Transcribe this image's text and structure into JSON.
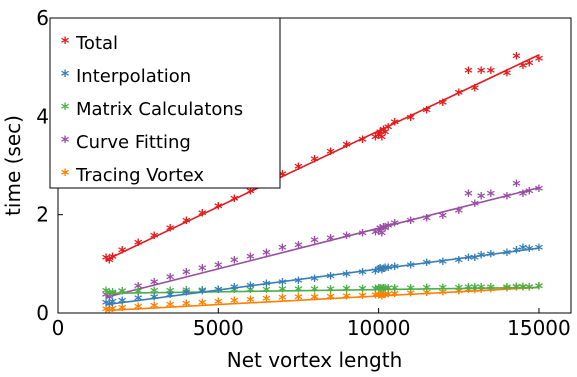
{
  "chart_data": {
    "type": "scatter",
    "title": "",
    "xlabel": "Net vortex length",
    "ylabel": "time (sec)",
    "xlim": [
      0,
      16000
    ],
    "ylim": [
      0,
      6
    ],
    "xticks": [
      0,
      5000,
      10000,
      15000
    ],
    "yticks": [
      0,
      2,
      4,
      6
    ],
    "xtick_labels": [
      "0",
      "5000",
      "10000",
      "15000"
    ],
    "ytick_labels": [
      "0",
      "2",
      "4",
      "6"
    ],
    "grid": false,
    "legend_position": "top-left",
    "marker": "*",
    "x": [
      1500,
      1600,
      1700,
      2000,
      2500,
      3000,
      3500,
      4000,
      4500,
      5000,
      5500,
      6000,
      6500,
      7000,
      7500,
      8000,
      8500,
      9000,
      9500,
      9900,
      10000,
      10050,
      10100,
      10150,
      10200,
      10300,
      10500,
      11000,
      11500,
      12000,
      12500,
      12800,
      13000,
      13200,
      13500,
      14000,
      14300,
      14500,
      14700,
      15000
    ],
    "series": [
      {
        "name": "Total",
        "color": "#e41a1c",
        "values": [
          1.1,
          1.05,
          1.12,
          1.25,
          1.4,
          1.55,
          1.7,
          1.85,
          2.0,
          2.15,
          2.3,
          2.45,
          2.6,
          2.8,
          2.95,
          3.1,
          3.25,
          3.4,
          3.5,
          3.55,
          3.6,
          3.65,
          3.55,
          3.7,
          3.65,
          3.75,
          3.85,
          3.95,
          4.1,
          4.25,
          4.45,
          4.9,
          4.55,
          4.9,
          4.9,
          4.85,
          5.2,
          5.0,
          5.05,
          5.15
        ],
        "fit": [
          1.08,
          5.25
        ]
      },
      {
        "name": "Interpolation",
        "color": "#377eb8",
        "values": [
          0.18,
          0.15,
          0.2,
          0.22,
          0.27,
          0.3,
          0.35,
          0.4,
          0.42,
          0.45,
          0.5,
          0.53,
          0.57,
          0.6,
          0.63,
          0.67,
          0.72,
          0.76,
          0.8,
          0.82,
          0.86,
          0.88,
          0.84,
          0.87,
          0.9,
          0.9,
          0.92,
          0.95,
          1.0,
          1.02,
          1.05,
          1.1,
          1.1,
          1.15,
          1.17,
          1.2,
          1.25,
          1.3,
          1.28,
          1.3
        ],
        "fit": [
          0.17,
          1.32
        ]
      },
      {
        "name": "Matrix Calculatons",
        "color": "#4daf4a",
        "values": [
          0.43,
          0.38,
          0.4,
          0.42,
          0.42,
          0.43,
          0.43,
          0.44,
          0.44,
          0.45,
          0.45,
          0.45,
          0.45,
          0.46,
          0.46,
          0.46,
          0.46,
          0.47,
          0.47,
          0.47,
          0.48,
          0.48,
          0.47,
          0.48,
          0.48,
          0.48,
          0.48,
          0.48,
          0.49,
          0.49,
          0.49,
          0.5,
          0.5,
          0.5,
          0.5,
          0.5,
          0.51,
          0.51,
          0.5,
          0.52
        ],
        "fit": [
          0.4,
          0.52
        ]
      },
      {
        "name": "Curve Fitting",
        "color": "#984ea3",
        "values": [
          0.35,
          0.3,
          0.37,
          0.42,
          0.52,
          0.6,
          0.7,
          0.8,
          0.88,
          0.95,
          1.05,
          1.12,
          1.2,
          1.3,
          1.35,
          1.45,
          1.5,
          1.55,
          1.6,
          1.62,
          1.65,
          1.7,
          1.6,
          1.72,
          1.7,
          1.75,
          1.8,
          1.85,
          1.9,
          1.95,
          2.05,
          2.4,
          2.2,
          2.35,
          2.4,
          2.35,
          2.6,
          2.4,
          2.45,
          2.5
        ],
        "fit": [
          0.32,
          2.55
        ]
      },
      {
        "name": "Tracing Vortex",
        "color": "#ff7f00",
        "values": [
          0.05,
          0.03,
          0.06,
          0.08,
          0.1,
          0.12,
          0.14,
          0.16,
          0.18,
          0.2,
          0.22,
          0.24,
          0.26,
          0.28,
          0.29,
          0.3,
          0.31,
          0.32,
          0.33,
          0.34,
          0.34,
          0.35,
          0.32,
          0.35,
          0.35,
          0.36,
          0.37,
          0.38,
          0.39,
          0.4,
          0.42,
          0.45,
          0.44,
          0.45,
          0.46,
          0.48,
          0.5,
          0.5,
          0.5,
          0.52
        ],
        "fit": [
          0.05,
          0.52
        ]
      }
    ]
  }
}
